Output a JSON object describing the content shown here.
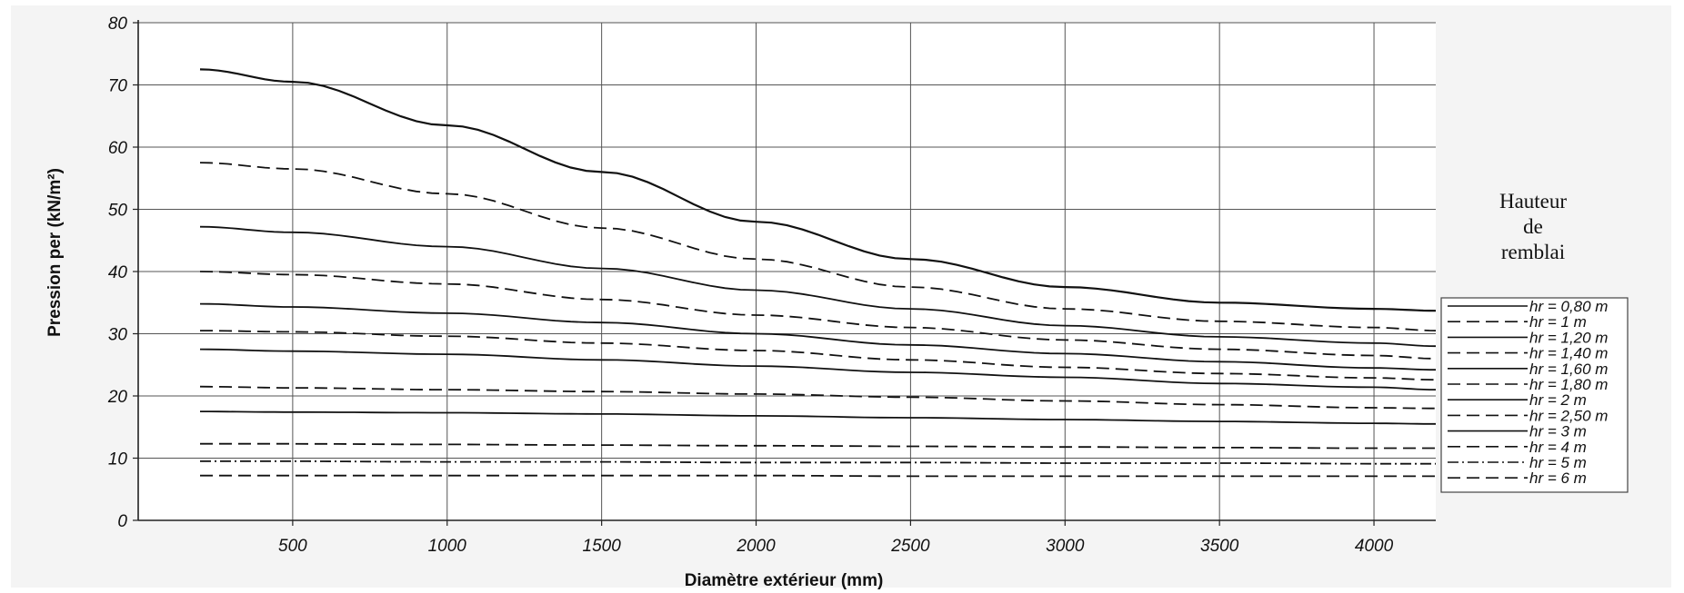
{
  "chart_data": {
    "type": "line",
    "title": "",
    "xlabel": "Diamètre extérieur (mm)",
    "ylabel": "Pression per  (kN/m²)",
    "xlim": [
      0,
      4200
    ],
    "ylim": [
      0,
      80
    ],
    "xticks": [
      500,
      1000,
      1500,
      2000,
      2500,
      3000,
      3500,
      4000
    ],
    "yticks": [
      0,
      10,
      20,
      30,
      40,
      50,
      60,
      70,
      80
    ],
    "grid": true,
    "legend_position": "right",
    "legend_title": [
      "Hauteur",
      "de",
      "remblai"
    ],
    "x": [
      200,
      500,
      1000,
      1500,
      2000,
      2500,
      3000,
      3500,
      4000,
      4200
    ],
    "series": [
      {
        "name": "hr = 0,80 m",
        "style": "solid",
        "values": [
          72.5,
          70.5,
          63.5,
          56,
          48,
          42,
          37.5,
          35,
          34,
          33.7
        ]
      },
      {
        "name": "hr = 1 m",
        "style": "dashed",
        "values": [
          57.5,
          56.5,
          52.5,
          47,
          42,
          37.5,
          34,
          32,
          31,
          30.5
        ]
      },
      {
        "name": "hr = 1,20 m",
        "style": "solid",
        "values": [
          47.2,
          46.3,
          44,
          40.5,
          37,
          34,
          31.3,
          29.5,
          28.5,
          28
        ]
      },
      {
        "name": "hr = 1,40 m",
        "style": "dashed",
        "values": [
          40,
          39.5,
          38,
          35.5,
          33,
          31,
          29,
          27.5,
          26.5,
          26
        ]
      },
      {
        "name": "hr = 1,60 m",
        "style": "solid",
        "values": [
          34.8,
          34.3,
          33.3,
          31.8,
          30,
          28.2,
          26.8,
          25.5,
          24.5,
          24.2
        ]
      },
      {
        "name": "hr = 1,80 m",
        "style": "dashed",
        "values": [
          30.5,
          30.3,
          29.6,
          28.5,
          27.3,
          25.8,
          24.6,
          23.6,
          22.9,
          22.6
        ]
      },
      {
        "name": "hr = 2 m",
        "style": "solid",
        "values": [
          27.5,
          27.2,
          26.7,
          25.8,
          24.8,
          23.8,
          23,
          22,
          21.4,
          21
        ]
      },
      {
        "name": "hr = 2,50 m",
        "style": "dashed",
        "values": [
          21.5,
          21.3,
          21,
          20.7,
          20.3,
          19.8,
          19.2,
          18.6,
          18.1,
          18
        ]
      },
      {
        "name": "hr = 3 m",
        "style": "solid",
        "values": [
          17.5,
          17.4,
          17.3,
          17.1,
          16.8,
          16.5,
          16.2,
          15.9,
          15.6,
          15.5
        ]
      },
      {
        "name": "hr = 4 m",
        "style": "dashed",
        "values": [
          12.3,
          12.3,
          12.2,
          12.1,
          12,
          11.9,
          11.8,
          11.7,
          11.6,
          11.6
        ]
      },
      {
        "name": "hr = 5 m",
        "style": "dashdot",
        "values": [
          9.5,
          9.5,
          9.4,
          9.4,
          9.3,
          9.3,
          9.2,
          9.2,
          9.1,
          9.1
        ]
      },
      {
        "name": "hr = 6 m",
        "style": "dashed",
        "values": [
          7.2,
          7.2,
          7.2,
          7.2,
          7.2,
          7.1,
          7.1,
          7.1,
          7.1,
          7.1
        ]
      }
    ]
  }
}
